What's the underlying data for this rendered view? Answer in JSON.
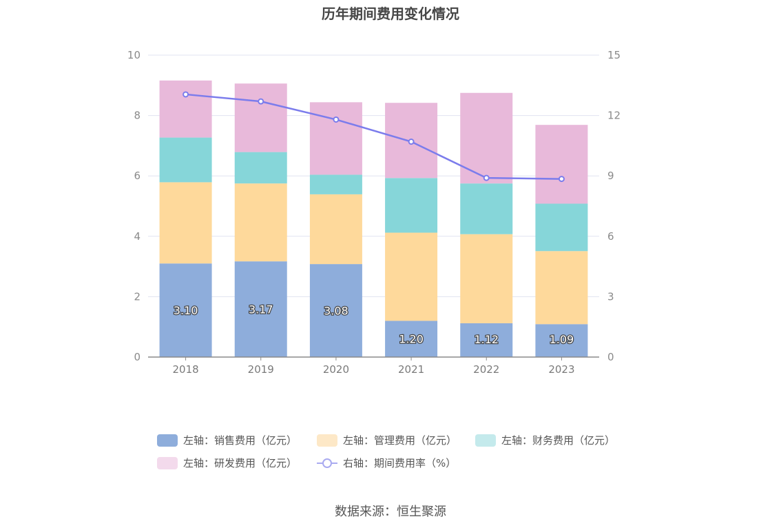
{
  "chart_data": {
    "type": "bar",
    "stacked": true,
    "title": "历年期间费用变化情况",
    "categories": [
      "2018",
      "2019",
      "2020",
      "2021",
      "2022",
      "2023"
    ],
    "series": [
      {
        "name": "左轴：销售费用（亿元）",
        "axis": "left",
        "color": "#8eaddb",
        "values": [
          3.1,
          3.17,
          3.08,
          1.2,
          1.12,
          1.09
        ],
        "labels": [
          "3.10",
          "3.17",
          "3.08",
          "1.20",
          "1.12",
          "1.09"
        ]
      },
      {
        "name": "左轴：管理费用（亿元）",
        "axis": "left",
        "color": "#fed99b",
        "legend_color": "#fde8c7",
        "values": [
          2.69,
          2.58,
          2.31,
          2.92,
          2.95,
          2.42
        ]
      },
      {
        "name": "左轴：财务费用（亿元）",
        "axis": "left",
        "color": "#86d6d9",
        "legend_color": "#c4eaec",
        "values": [
          1.48,
          1.04,
          0.65,
          1.81,
          1.68,
          1.57
        ]
      },
      {
        "name": "左轴：研发费用（亿元）",
        "axis": "left",
        "color": "#e8b9da",
        "legend_color": "#f3daec",
        "values": [
          1.89,
          2.27,
          2.4,
          2.49,
          3.0,
          2.61
        ]
      },
      {
        "name": "右轴：期间费用率（%）",
        "axis": "right",
        "type": "line",
        "color": "#7b7cec",
        "values": [
          13.05,
          12.7,
          11.8,
          10.7,
          8.9,
          8.85
        ]
      }
    ],
    "left_axis": {
      "min": 0,
      "max": 10,
      "ticks": [
        "0",
        "2",
        "4",
        "6",
        "8",
        "10"
      ]
    },
    "right_axis": {
      "min": 0,
      "max": 15,
      "ticks": [
        "0",
        "3",
        "6",
        "9",
        "12",
        "15"
      ]
    },
    "grid": true,
    "legend_position": "bottom"
  },
  "source": "数据来源：恒生聚源"
}
